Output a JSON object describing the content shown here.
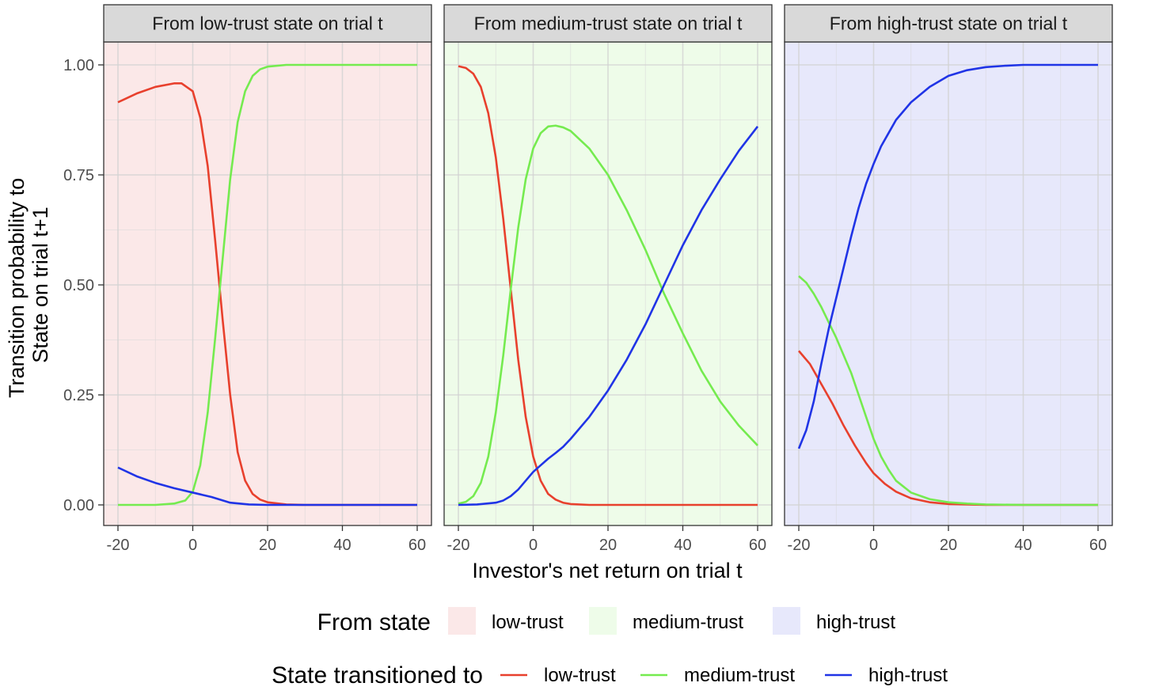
{
  "chart_data": {
    "type": "line",
    "xlabel": "Investor's net return on trial t",
    "ylabel_lines": [
      "Transition probability to",
      "State on trial t+1"
    ],
    "xlim": [
      -20,
      60
    ],
    "ylim": [
      0,
      1
    ],
    "x_ticks": [
      -20,
      0,
      20,
      40,
      60
    ],
    "x_tick_labels": [
      "-20",
      "0",
      "20",
      "40",
      "60"
    ],
    "y_ticks": [
      0,
      0.25,
      0.5,
      0.75,
      1
    ],
    "y_tick_labels": [
      "0.00",
      "0.25",
      "0.50",
      "0.75",
      "1.00"
    ],
    "grid": true,
    "colors": {
      "low-trust": "#e8402d",
      "medium-trust": "#75eb4f",
      "high-trust": "#2034e6"
    },
    "panel_fills": {
      "low-trust": "#fbe8e8",
      "medium-trust": "#eefce9",
      "high-trust": "#e7e8fb"
    },
    "panels": [
      {
        "title": "From low-trust state on trial t",
        "from_state": "low-trust",
        "series": [
          {
            "name": "low-trust",
            "x": [
              -20,
              -15,
              -10,
              -5,
              -3,
              0,
              2,
              4,
              6,
              8,
              10,
              12,
              14,
              16,
              18,
              20,
              25,
              30,
              40,
              50,
              60
            ],
            "y": [
              0.915,
              0.935,
              0.95,
              0.958,
              0.958,
              0.94,
              0.88,
              0.77,
              0.6,
              0.42,
              0.25,
              0.12,
              0.055,
              0.025,
              0.012,
              0.006,
              0.001,
              0,
              0,
              0,
              0
            ]
          },
          {
            "name": "medium-trust",
            "x": [
              -20,
              -10,
              -5,
              -2,
              0,
              2,
              4,
              6,
              8,
              10,
              12,
              14,
              16,
              18,
              20,
              25,
              30,
              40,
              50,
              60
            ],
            "y": [
              0,
              0,
              0.003,
              0.01,
              0.03,
              0.09,
              0.21,
              0.38,
              0.56,
              0.74,
              0.87,
              0.94,
              0.975,
              0.99,
              0.996,
              1.0,
              1.0,
              1.0,
              1.0,
              1.0
            ]
          },
          {
            "name": "high-trust",
            "x": [
              -20,
              -15,
              -10,
              -5,
              0,
              5,
              10,
              15,
              20,
              30,
              40,
              50,
              60
            ],
            "y": [
              0.085,
              0.065,
              0.05,
              0.038,
              0.028,
              0.018,
              0.005,
              0.001,
              0,
              0,
              0,
              0,
              0
            ]
          }
        ]
      },
      {
        "title": "From medium-trust state on trial t",
        "from_state": "medium-trust",
        "series": [
          {
            "name": "low-trust",
            "x": [
              -20,
              -18,
              -16,
              -14,
              -12,
              -10,
              -8,
              -6,
              -4,
              -2,
              0,
              2,
              4,
              6,
              8,
              10,
              15,
              20,
              30,
              40,
              50,
              60
            ],
            "y": [
              0.997,
              0.993,
              0.98,
              0.95,
              0.89,
              0.79,
              0.65,
              0.49,
              0.33,
              0.2,
              0.11,
              0.055,
              0.025,
              0.012,
              0.005,
              0.002,
              0,
              0,
              0,
              0,
              0,
              0
            ]
          },
          {
            "name": "medium-trust",
            "x": [
              -20,
              -18,
              -16,
              -14,
              -12,
              -10,
              -8,
              -6,
              -4,
              -2,
              0,
              2,
              4,
              6,
              8,
              10,
              15,
              20,
              25,
              30,
              35,
              40,
              45,
              50,
              55,
              60
            ],
            "y": [
              0.003,
              0.007,
              0.02,
              0.05,
              0.11,
              0.21,
              0.34,
              0.49,
              0.63,
              0.74,
              0.81,
              0.845,
              0.86,
              0.862,
              0.858,
              0.85,
              0.81,
              0.75,
              0.67,
              0.58,
              0.48,
              0.39,
              0.305,
              0.235,
              0.18,
              0.135
            ]
          },
          {
            "name": "high-trust",
            "x": [
              -20,
              -15,
              -10,
              -8,
              -6,
              -4,
              -2,
              0,
              2,
              4,
              6,
              8,
              10,
              15,
              20,
              25,
              30,
              35,
              40,
              45,
              50,
              55,
              60
            ],
            "y": [
              0,
              0.001,
              0.005,
              0.01,
              0.02,
              0.035,
              0.055,
              0.075,
              0.09,
              0.105,
              0.118,
              0.132,
              0.15,
              0.2,
              0.26,
              0.33,
              0.41,
              0.5,
              0.59,
              0.67,
              0.74,
              0.805,
              0.86
            ]
          }
        ]
      },
      {
        "title": "From high-trust state on trial t",
        "from_state": "high-trust",
        "series": [
          {
            "name": "low-trust",
            "x": [
              -20,
              -17,
              -14,
              -11,
              -8,
              -5,
              -2,
              0,
              3,
              6,
              10,
              15,
              20,
              25,
              30,
              40,
              50,
              60
            ],
            "y": [
              0.35,
              0.32,
              0.275,
              0.23,
              0.18,
              0.135,
              0.095,
              0.072,
              0.048,
              0.03,
              0.015,
              0.006,
              0.002,
              0.001,
              0,
              0,
              0,
              0
            ]
          },
          {
            "name": "medium-trust",
            "x": [
              -20,
              -18,
              -16,
              -14,
              -12,
              -10,
              -8,
              -6,
              -4,
              -2,
              0,
              2,
              4,
              6,
              10,
              15,
              20,
              25,
              30,
              40,
              50,
              60
            ],
            "y": [
              0.52,
              0.505,
              0.48,
              0.45,
              0.415,
              0.38,
              0.34,
              0.3,
              0.25,
              0.2,
              0.15,
              0.11,
              0.08,
              0.055,
              0.028,
              0.013,
              0.006,
              0.003,
              0.001,
              0,
              0,
              0
            ]
          },
          {
            "name": "high-trust",
            "x": [
              -20,
              -18,
              -16,
              -14,
              -12,
              -10,
              -8,
              -6,
              -4,
              -2,
              0,
              2,
              4,
              6,
              8,
              10,
              15,
              20,
              25,
              30,
              35,
              40,
              50,
              60
            ],
            "y": [
              0.128,
              0.17,
              0.235,
              0.32,
              0.4,
              0.47,
              0.54,
              0.61,
              0.675,
              0.73,
              0.775,
              0.815,
              0.845,
              0.875,
              0.895,
              0.915,
              0.95,
              0.975,
              0.988,
              0.995,
              0.998,
              1.0,
              1.0,
              1.0
            ]
          }
        ]
      }
    ]
  },
  "legend": {
    "fill_title": "From state",
    "fill_items": [
      {
        "label": "low-trust",
        "color": "#fbe8e8"
      },
      {
        "label": "medium-trust",
        "color": "#eefce9"
      },
      {
        "label": "high-trust",
        "color": "#e7e8fb"
      }
    ],
    "line_title": "State transitioned to",
    "line_items": [
      {
        "label": "low-trust",
        "color": "#e8402d"
      },
      {
        "label": "medium-trust",
        "color": "#75eb4f"
      },
      {
        "label": "high-trust",
        "color": "#2034e6"
      }
    ]
  }
}
